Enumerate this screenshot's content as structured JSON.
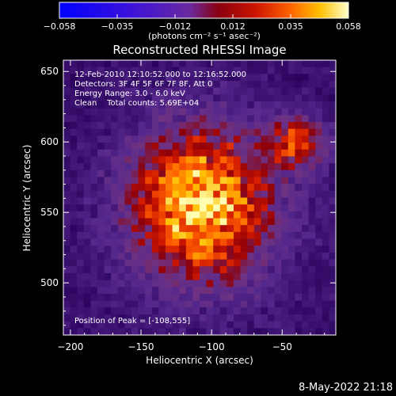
{
  "colorbar": {
    "ticks": [
      "−0.058",
      "−0.035",
      "−0.012",
      "0.012",
      "0.035",
      "0.058"
    ],
    "unit_label": "(photons cm⁻² s⁻¹ asec⁻²)"
  },
  "chart_data": {
    "type": "heatmap",
    "title": "Reconstructed RHESSI Image",
    "xlabel": "Heliocentric X (arcsec)",
    "ylabel": "Heliocentric Y (arcsec)",
    "xlim": [
      -205,
      -12
    ],
    "ylim": [
      463,
      658
    ],
    "x_ticks": [
      -200,
      -150,
      -100,
      -50
    ],
    "y_ticks": [
      500,
      550,
      600,
      650
    ],
    "x_tick_labels": [
      "−200",
      "−150",
      "−100",
      "−50"
    ],
    "y_tick_labels": [
      "500",
      "550",
      "600",
      "650"
    ],
    "value_range": [
      -0.058,
      0.058
    ],
    "peak": [
      -108,
      555
    ],
    "secondary_peak": [
      -40,
      600
    ],
    "annotations": {
      "time_range": "12-Feb-2010 12:10:52.000 to 12:16:52.000",
      "detectors": "Detectors: 3F 4F 5F 6F 7F 8F, Att 0",
      "energy": "Energy Range: 3.0 - 6.0 keV",
      "clean": "Clean    Total counts: 5.69E+04",
      "peak_text": "Position of Peak = [-108,555]"
    }
  },
  "footer": {
    "date": "8-May-2022 21:18"
  }
}
